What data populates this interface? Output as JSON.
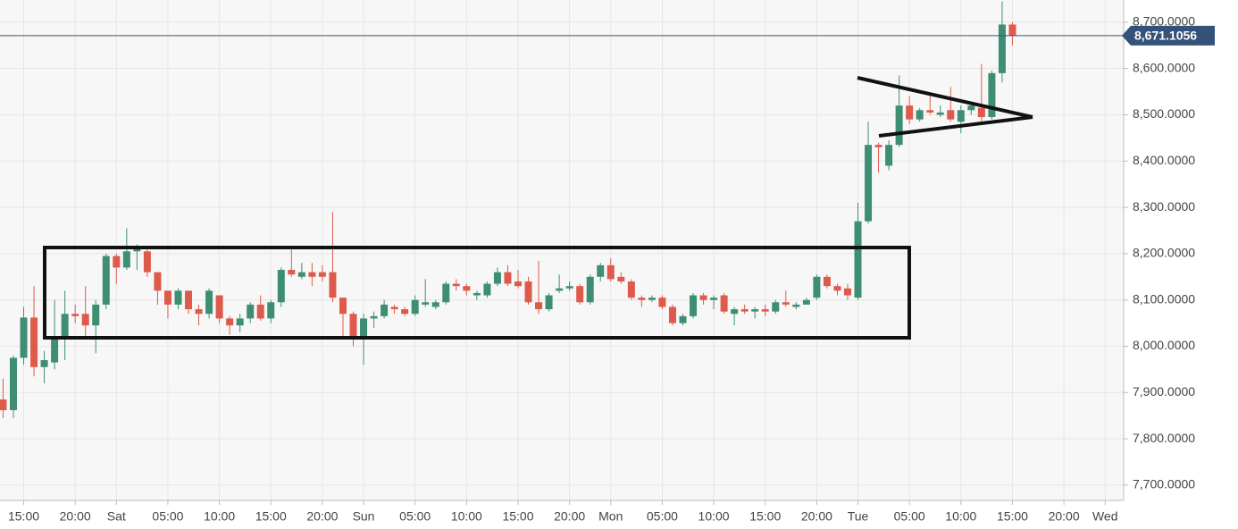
{
  "chart_data": {
    "type": "candlestick",
    "x": [
      13,
      14,
      15,
      16,
      17,
      18,
      19,
      20,
      21,
      22,
      23,
      24,
      25,
      26,
      27,
      28,
      29,
      30,
      31,
      32,
      33,
      34,
      35,
      36,
      37,
      38,
      39,
      40,
      41,
      42,
      43,
      44,
      45,
      46,
      47,
      48,
      49,
      50,
      51,
      52,
      53,
      54,
      55,
      56,
      57,
      58,
      59,
      60,
      61,
      62,
      63,
      64,
      65,
      66,
      67,
      68,
      69,
      70,
      71,
      72,
      73,
      74,
      75,
      76,
      77,
      78,
      79,
      80,
      81,
      82,
      83,
      84,
      85,
      86,
      87,
      88,
      89,
      90,
      91,
      92,
      93,
      94,
      95,
      96,
      97,
      98,
      99,
      100,
      101,
      102,
      103,
      104,
      105,
      106,
      107,
      108,
      109,
      110,
      111
    ],
    "open": [
      7885,
      7862,
      7975,
      8062,
      7955,
      7965,
      8015,
      8070,
      8070,
      8045,
      8090,
      8195,
      8170,
      8205,
      8205,
      8160,
      8120,
      8090,
      8120,
      8080,
      8070,
      8110,
      8060,
      8045,
      8060,
      8090,
      8060,
      8095,
      8165,
      8150,
      8160,
      8160,
      8160,
      8105,
      8070,
      8015,
      8060,
      8065,
      8085,
      8080,
      8070,
      8090,
      8085,
      8095,
      8135,
      8130,
      8110,
      8110,
      8135,
      8160,
      8140,
      8140,
      8095,
      8080,
      8120,
      8125,
      8130,
      8095,
      8150,
      8175,
      8150,
      8140,
      8105,
      8100,
      8105,
      8085,
      8050,
      8065,
      8110,
      8100,
      8110,
      8070,
      8080,
      8075,
      8080,
      8075,
      8095,
      8085,
      8090,
      8105,
      8150,
      8130,
      8125,
      8105,
      8270,
      8435,
      8390,
      8435,
      8520,
      8490,
      8510,
      8500,
      8510,
      8485,
      8510,
      8515,
      8495,
      8590,
      8695
    ],
    "high": [
      7930,
      7980,
      8085,
      8130,
      7990,
      8100,
      8120,
      8090,
      8130,
      8100,
      8200,
      8200,
      8255,
      8220,
      8210,
      8160,
      8120,
      8125,
      8120,
      8090,
      8125,
      8110,
      8065,
      8070,
      8095,
      8110,
      8100,
      8170,
      8210,
      8180,
      8180,
      8175,
      8290,
      8105,
      8075,
      8070,
      8075,
      8100,
      8090,
      8085,
      8110,
      8145,
      8100,
      8140,
      8145,
      8135,
      8120,
      8140,
      8170,
      8175,
      8165,
      8150,
      8185,
      8115,
      8155,
      8140,
      8135,
      8155,
      8180,
      8190,
      8160,
      8145,
      8110,
      8110,
      8110,
      8090,
      8070,
      8115,
      8115,
      8110,
      8115,
      8085,
      8090,
      8085,
      8090,
      8100,
      8120,
      8095,
      8105,
      8155,
      8155,
      8135,
      8135,
      8310,
      8485,
      8440,
      8445,
      8585,
      8540,
      8515,
      8545,
      8520,
      8560,
      8520,
      8525,
      8610,
      8595,
      8745,
      8700
    ],
    "low": [
      7845,
      7845,
      7960,
      7935,
      7920,
      7950,
      7970,
      8050,
      8020,
      7985,
      8080,
      8135,
      8165,
      8165,
      8150,
      8090,
      8060,
      8080,
      8070,
      8045,
      8060,
      8050,
      8025,
      8030,
      8050,
      8055,
      8050,
      8085,
      8150,
      8145,
      8130,
      8140,
      8095,
      8020,
      8000,
      7960,
      8040,
      8060,
      8070,
      8065,
      8065,
      8085,
      8080,
      8090,
      8120,
      8110,
      8100,
      8105,
      8130,
      8130,
      8125,
      8090,
      8070,
      8075,
      8115,
      8120,
      8090,
      8090,
      8140,
      8140,
      8135,
      8100,
      8085,
      8095,
      8080,
      8045,
      8045,
      8060,
      8090,
      8080,
      8070,
      8045,
      8070,
      8060,
      8065,
      8070,
      8085,
      8080,
      8090,
      8100,
      8125,
      8110,
      8100,
      8100,
      8265,
      8375,
      8380,
      8430,
      8480,
      8485,
      8500,
      8495,
      8485,
      8460,
      8500,
      8480,
      8490,
      8570,
      8650
    ],
    "close": [
      7862,
      7975,
      8062,
      7955,
      7970,
      8015,
      8070,
      8065,
      8045,
      8090,
      8195,
      8170,
      8205,
      8210,
      8160,
      8120,
      8090,
      8120,
      8080,
      8070,
      8120,
      8060,
      8045,
      8060,
      8090,
      8060,
      8095,
      8165,
      8155,
      8160,
      8150,
      8150,
      8105,
      8070,
      8015,
      8060,
      8065,
      8090,
      8080,
      8070,
      8100,
      8095,
      8095,
      8135,
      8130,
      8120,
      8115,
      8135,
      8160,
      8135,
      8130,
      8095,
      8080,
      8110,
      8125,
      8130,
      8095,
      8150,
      8175,
      8145,
      8140,
      8105,
      8100,
      8105,
      8085,
      8050,
      8065,
      8110,
      8100,
      8105,
      8075,
      8080,
      8075,
      8080,
      8075,
      8095,
      8090,
      8090,
      8100,
      8150,
      8130,
      8120,
      8110,
      8270,
      8435,
      8430,
      8435,
      8520,
      8490,
      8510,
      8505,
      8505,
      8490,
      8510,
      8520,
      8495,
      8590,
      8695,
      8671
    ],
    "up_color": "#3e8e74",
    "down_color": "#de5a4b",
    "xlim": [
      12.7,
      121.8
    ],
    "ylim": [
      7667,
      8748
    ],
    "xticks": [
      {
        "value": 15,
        "label": "15:00"
      },
      {
        "value": 20,
        "label": "20:00"
      },
      {
        "value": 24,
        "label": "Sat"
      },
      {
        "value": 29,
        "label": "05:00"
      },
      {
        "value": 34,
        "label": "10:00"
      },
      {
        "value": 39,
        "label": "15:00"
      },
      {
        "value": 44,
        "label": "20:00"
      },
      {
        "value": 48,
        "label": "Sun"
      },
      {
        "value": 53,
        "label": "05:00"
      },
      {
        "value": 58,
        "label": "10:00"
      },
      {
        "value": 63,
        "label": "15:00"
      },
      {
        "value": 68,
        "label": "20:00"
      },
      {
        "value": 72,
        "label": "Mon"
      },
      {
        "value": 77,
        "label": "05:00"
      },
      {
        "value": 82,
        "label": "10:00"
      },
      {
        "value": 87,
        "label": "15:00"
      },
      {
        "value": 92,
        "label": "20:00"
      },
      {
        "value": 96,
        "label": "Tue"
      },
      {
        "value": 101,
        "label": "05:00"
      },
      {
        "value": 106,
        "label": "10:00"
      },
      {
        "value": 111,
        "label": "15:00"
      },
      {
        "value": 116,
        "label": "20:00"
      },
      {
        "value": 120,
        "label": "Wed"
      }
    ],
    "yticks": [
      {
        "value": 7700,
        "label": "7,700.0000"
      },
      {
        "value": 7800,
        "label": "7,800.0000"
      },
      {
        "value": 7900,
        "label": "7,900.0000"
      },
      {
        "value": 8000,
        "label": "8,000.0000"
      },
      {
        "value": 8100,
        "label": "8,100.0000"
      },
      {
        "value": 8200,
        "label": "8,200.0000"
      },
      {
        "value": 8300,
        "label": "8,300.0000"
      },
      {
        "value": 8400,
        "label": "8,400.0000"
      },
      {
        "value": 8500,
        "label": "8,500.0000"
      },
      {
        "value": 8600,
        "label": "8,600.0000"
      },
      {
        "value": 8700,
        "label": "8,700.0000"
      }
    ],
    "price_line": {
      "value": 8671.1056,
      "label": "8,671.1056",
      "color": "#34527a"
    },
    "grid": true
  }
}
